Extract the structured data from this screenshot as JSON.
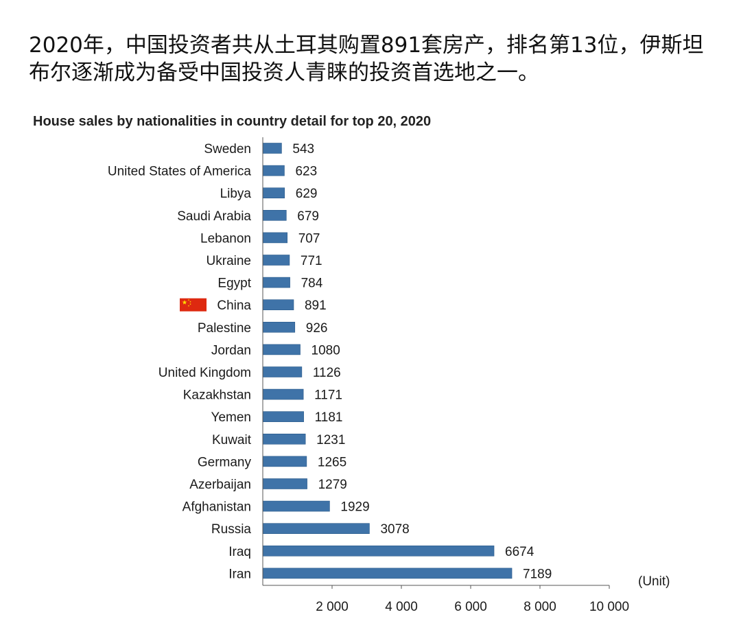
{
  "headline": "2020年，中国投资者共从土耳其购置891套房产，排名第13位，伊斯坦布尔逐渐成为备受中国投资人青睐的投资首选地之一。",
  "colors": {
    "bar": "#3f73a8",
    "bar_edge": "#2b5a8a",
    "flag_red": "#de2910",
    "flag_star": "#ffde00",
    "axis": "#555555"
  },
  "chart_data": {
    "type": "bar",
    "orientation": "horizontal",
    "title": "House sales by nationalities in country detail for top 20, 2020",
    "unit_label": "(Unit)",
    "categories": [
      "Sweden",
      "United States of America",
      "Libya",
      "Saudi Arabia",
      "Lebanon",
      "Ukraine",
      "Egypt",
      "China",
      "Palestine",
      "Jordan",
      "United Kingdom",
      "Kazakhstan",
      "Yemen",
      "Kuwait",
      "Germany",
      "Azerbaijan",
      "Afghanistan",
      "Russia",
      "Iraq",
      "Iran"
    ],
    "values": [
      543,
      623,
      629,
      679,
      707,
      771,
      784,
      891,
      926,
      1080,
      1126,
      1171,
      1181,
      1231,
      1265,
      1279,
      1929,
      3078,
      6674,
      7189
    ],
    "value_labels": [
      "543",
      "623",
      "629",
      "679",
      "707",
      "771",
      "784",
      "891",
      "926",
      "1080",
      "1126",
      "1171",
      "1181",
      "1231",
      "1265",
      "1279",
      "1929",
      "3078",
      "6674",
      "7189"
    ],
    "xlim": [
      0,
      10000
    ],
    "xticks": [
      2000,
      4000,
      6000,
      8000,
      10000
    ],
    "xtick_labels": [
      "2 000",
      "4 000",
      "6 000",
      "8 000",
      "10 000"
    ],
    "highlight": {
      "category": "China",
      "marker": "china-flag"
    },
    "grid": false,
    "legend": "none"
  }
}
